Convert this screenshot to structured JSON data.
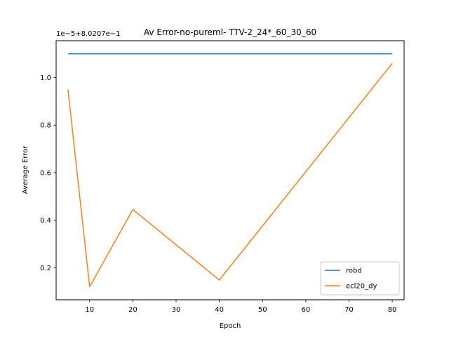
{
  "chart_data": {
    "type": "line",
    "title": "Av Error-no-pureml- TTV-2_24*_60_30_60",
    "xlabel": "Epoch",
    "ylabel": "Average Error",
    "offset_text": "1e−5+8.0207e−1",
    "xlim": [
      2.25,
      82.75
    ],
    "ylim": [
      0.065,
      1.155
    ],
    "x_ticks": [
      10,
      20,
      30,
      40,
      50,
      60,
      70,
      80
    ],
    "y_ticks": [
      0.2,
      0.4,
      0.6,
      0.8,
      1.0
    ],
    "x_tick_labels": [
      "10",
      "20",
      "30",
      "40",
      "50",
      "60",
      "70",
      "80"
    ],
    "y_tick_labels": [
      "0.2",
      "0.4",
      "0.6",
      "0.8",
      "1.0"
    ],
    "grid": false,
    "legend_position": "lower-right",
    "series": [
      {
        "name": "robd",
        "color": "#1f77b4",
        "x": [
          5,
          80
        ],
        "y": [
          1.1,
          1.1
        ]
      },
      {
        "name": "ecl20_dy",
        "color": "#ff7f0e",
        "x": [
          5,
          10,
          20,
          40,
          80
        ],
        "y": [
          0.95,
          0.12,
          0.445,
          0.148,
          1.06
        ]
      }
    ]
  }
}
